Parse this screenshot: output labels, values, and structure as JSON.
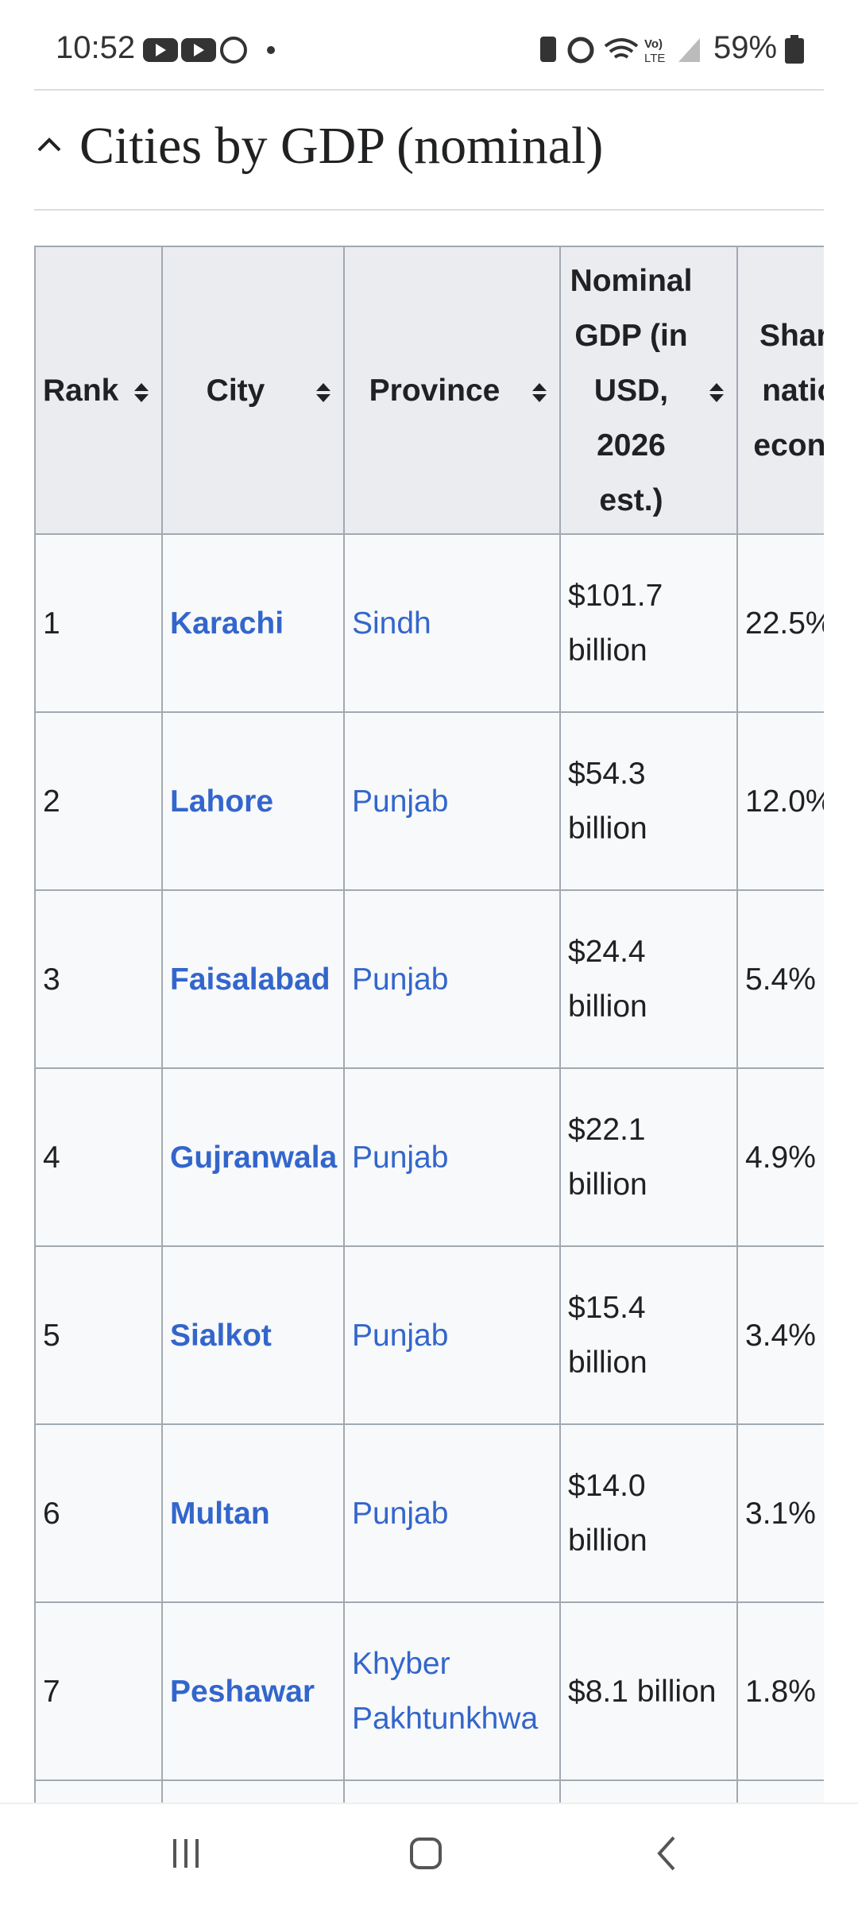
{
  "status_bar": {
    "time": "10:52",
    "battery": "59%"
  },
  "section": {
    "title": "Cities by GDP (nominal)"
  },
  "table": {
    "headers": [
      "Rank",
      "City",
      "Province",
      "Nominal GDP (in USD, 2026 est.)",
      "Share of national economy"
    ],
    "rows": [
      [
        "1",
        "Karachi",
        "Sindh",
        "$101.7 billion",
        "22.5%"
      ],
      [
        "2",
        "Lahore",
        "Punjab",
        "$54.3 billion",
        "12.0%"
      ],
      [
        "3",
        "Faisalabad",
        "Punjab",
        "$24.4 billion",
        "5.4%"
      ],
      [
        "4",
        "Gujranwala",
        "Punjab",
        "$22.1 billion",
        "4.9%"
      ],
      [
        "5",
        "Sialkot",
        "Punjab",
        "$15.4 billion",
        "3.4%"
      ],
      [
        "6",
        "Multan",
        "Punjab",
        "$14.0 billion",
        "3.1%"
      ],
      [
        "7",
        "Peshawar",
        "Khyber Pakhtunkhwa",
        "$8.1 billion",
        "1.8%"
      ]
    ]
  }
}
